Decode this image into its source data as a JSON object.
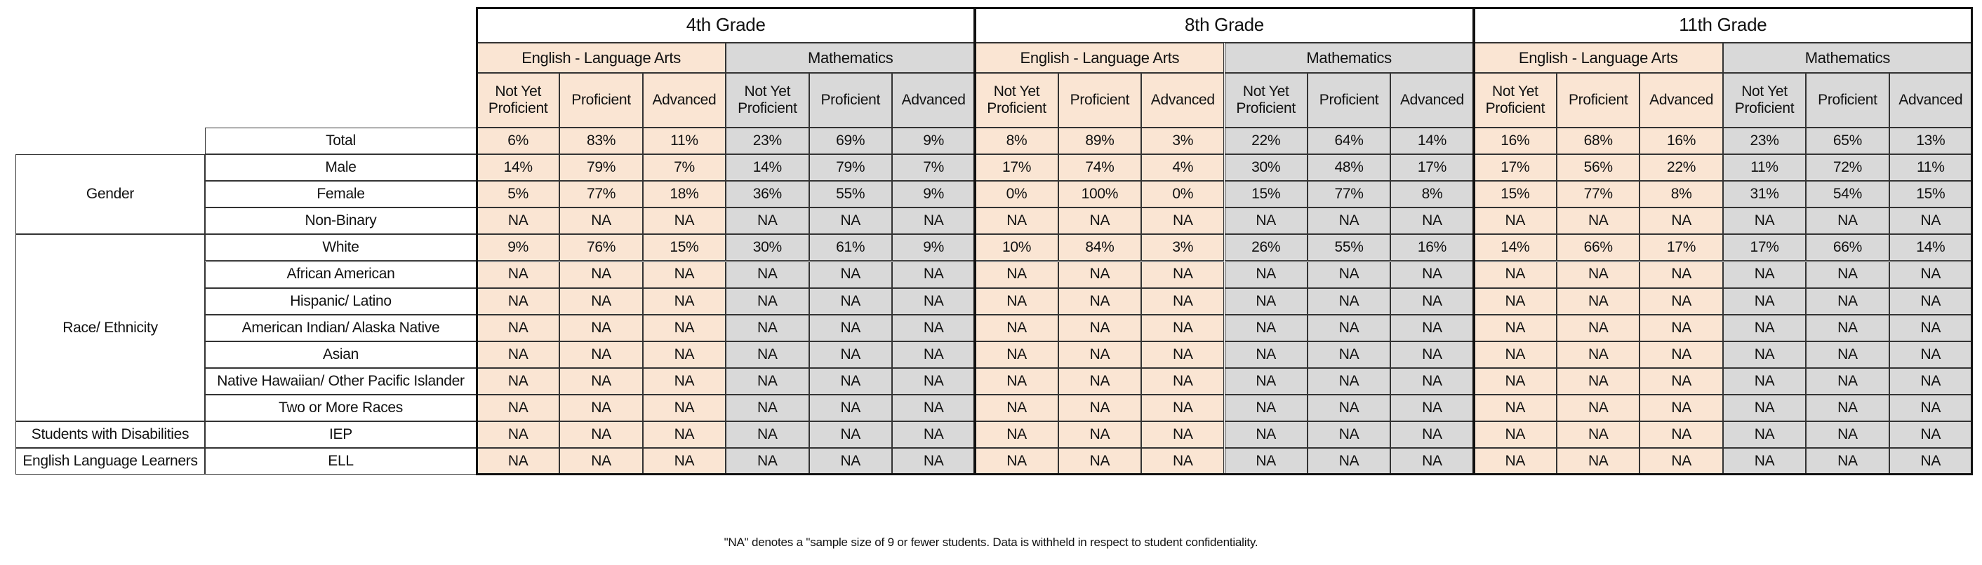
{
  "grades": [
    {
      "name": "4th Grade",
      "subjects": [
        {
          "name": "English - Language Arts",
          "levels": [
            "Not Yet Proficient",
            "Proficient",
            "Advanced"
          ]
        },
        {
          "name": "Mathematics",
          "levels": [
            "Not Yet Proficient",
            "Proficient",
            "Advanced"
          ]
        }
      ]
    },
    {
      "name": "8th Grade",
      "subjects": [
        {
          "name": "English - Language Arts",
          "levels": [
            "Not Yet Proficient",
            "Proficient",
            "Advanced"
          ]
        },
        {
          "name": "Mathematics",
          "levels": [
            "Not Yet Proficient",
            "Proficient",
            "Advanced"
          ]
        }
      ]
    },
    {
      "name": "11th Grade",
      "subjects": [
        {
          "name": "English - Language Arts",
          "levels": [
            "Not Yet Proficient",
            "Proficient",
            "Advanced"
          ]
        },
        {
          "name": "Mathematics",
          "levels": [
            "Not Yet Proficient",
            "Proficient",
            "Advanced"
          ]
        }
      ]
    }
  ],
  "total": {
    "label": "Total",
    "values": [
      "6%",
      "83%",
      "11%",
      "23%",
      "69%",
      "9%",
      "8%",
      "89%",
      "3%",
      "22%",
      "64%",
      "14%",
      "16%",
      "68%",
      "16%",
      "23%",
      "65%",
      "13%"
    ]
  },
  "groups": [
    {
      "name": "Gender",
      "rows": [
        {
          "label": "Male",
          "values": [
            "14%",
            "79%",
            "7%",
            "14%",
            "79%",
            "7%",
            "17%",
            "74%",
            "4%",
            "30%",
            "48%",
            "17%",
            "17%",
            "56%",
            "22%",
            "11%",
            "72%",
            "11%"
          ]
        },
        {
          "label": "Female",
          "values": [
            "5%",
            "77%",
            "18%",
            "36%",
            "55%",
            "9%",
            "0%",
            "100%",
            "0%",
            "15%",
            "77%",
            "8%",
            "15%",
            "77%",
            "8%",
            "31%",
            "54%",
            "15%"
          ]
        },
        {
          "label": "Non-Binary",
          "values": [
            "NA",
            "NA",
            "NA",
            "NA",
            "NA",
            "NA",
            "NA",
            "NA",
            "NA",
            "NA",
            "NA",
            "NA",
            "NA",
            "NA",
            "NA",
            "NA",
            "NA",
            "NA"
          ]
        }
      ]
    },
    {
      "name": "Race/ Ethnicity",
      "rows": [
        {
          "label": "White",
          "values": [
            "9%",
            "76%",
            "15%",
            "30%",
            "61%",
            "9%",
            "10%",
            "84%",
            "3%",
            "26%",
            "55%",
            "16%",
            "14%",
            "66%",
            "17%",
            "17%",
            "66%",
            "14%"
          ]
        },
        {
          "label": "African American",
          "values": [
            "NA",
            "NA",
            "NA",
            "NA",
            "NA",
            "NA",
            "NA",
            "NA",
            "NA",
            "NA",
            "NA",
            "NA",
            "NA",
            "NA",
            "NA",
            "NA",
            "NA",
            "NA"
          ]
        },
        {
          "label": "Hispanic/ Latino",
          "values": [
            "NA",
            "NA",
            "NA",
            "NA",
            "NA",
            "NA",
            "NA",
            "NA",
            "NA",
            "NA",
            "NA",
            "NA",
            "NA",
            "NA",
            "NA",
            "NA",
            "NA",
            "NA"
          ]
        },
        {
          "label": "American Indian/ Alaska Native",
          "values": [
            "NA",
            "NA",
            "NA",
            "NA",
            "NA",
            "NA",
            "NA",
            "NA",
            "NA",
            "NA",
            "NA",
            "NA",
            "NA",
            "NA",
            "NA",
            "NA",
            "NA",
            "NA"
          ]
        },
        {
          "label": "Asian",
          "values": [
            "NA",
            "NA",
            "NA",
            "NA",
            "NA",
            "NA",
            "NA",
            "NA",
            "NA",
            "NA",
            "NA",
            "NA",
            "NA",
            "NA",
            "NA",
            "NA",
            "NA",
            "NA"
          ]
        },
        {
          "label": "Native Hawaiian/ Other Pacific Islander",
          "values": [
            "NA",
            "NA",
            "NA",
            "NA",
            "NA",
            "NA",
            "NA",
            "NA",
            "NA",
            "NA",
            "NA",
            "NA",
            "NA",
            "NA",
            "NA",
            "NA",
            "NA",
            "NA"
          ]
        },
        {
          "label": "Two or More Races",
          "values": [
            "NA",
            "NA",
            "NA",
            "NA",
            "NA",
            "NA",
            "NA",
            "NA",
            "NA",
            "NA",
            "NA",
            "NA",
            "NA",
            "NA",
            "NA",
            "NA",
            "NA",
            "NA"
          ]
        }
      ]
    },
    {
      "name": "Students with Disabilities",
      "rows": [
        {
          "label": "IEP",
          "values": [
            "NA",
            "NA",
            "NA",
            "NA",
            "NA",
            "NA",
            "NA",
            "NA",
            "NA",
            "NA",
            "NA",
            "NA",
            "NA",
            "NA",
            "NA",
            "NA",
            "NA",
            "NA"
          ]
        }
      ]
    },
    {
      "name": "English Language Learners",
      "rows": [
        {
          "label": "ELL",
          "values": [
            "NA",
            "NA",
            "NA",
            "NA",
            "NA",
            "NA",
            "NA",
            "NA",
            "NA",
            "NA",
            "NA",
            "NA",
            "NA",
            "NA",
            "NA",
            "NA",
            "NA",
            "NA"
          ]
        }
      ]
    }
  ],
  "footnote": "\"NA\" denotes a \"sample size of 9 or fewer students. Data is withheld in respect to student confidentiality."
}
